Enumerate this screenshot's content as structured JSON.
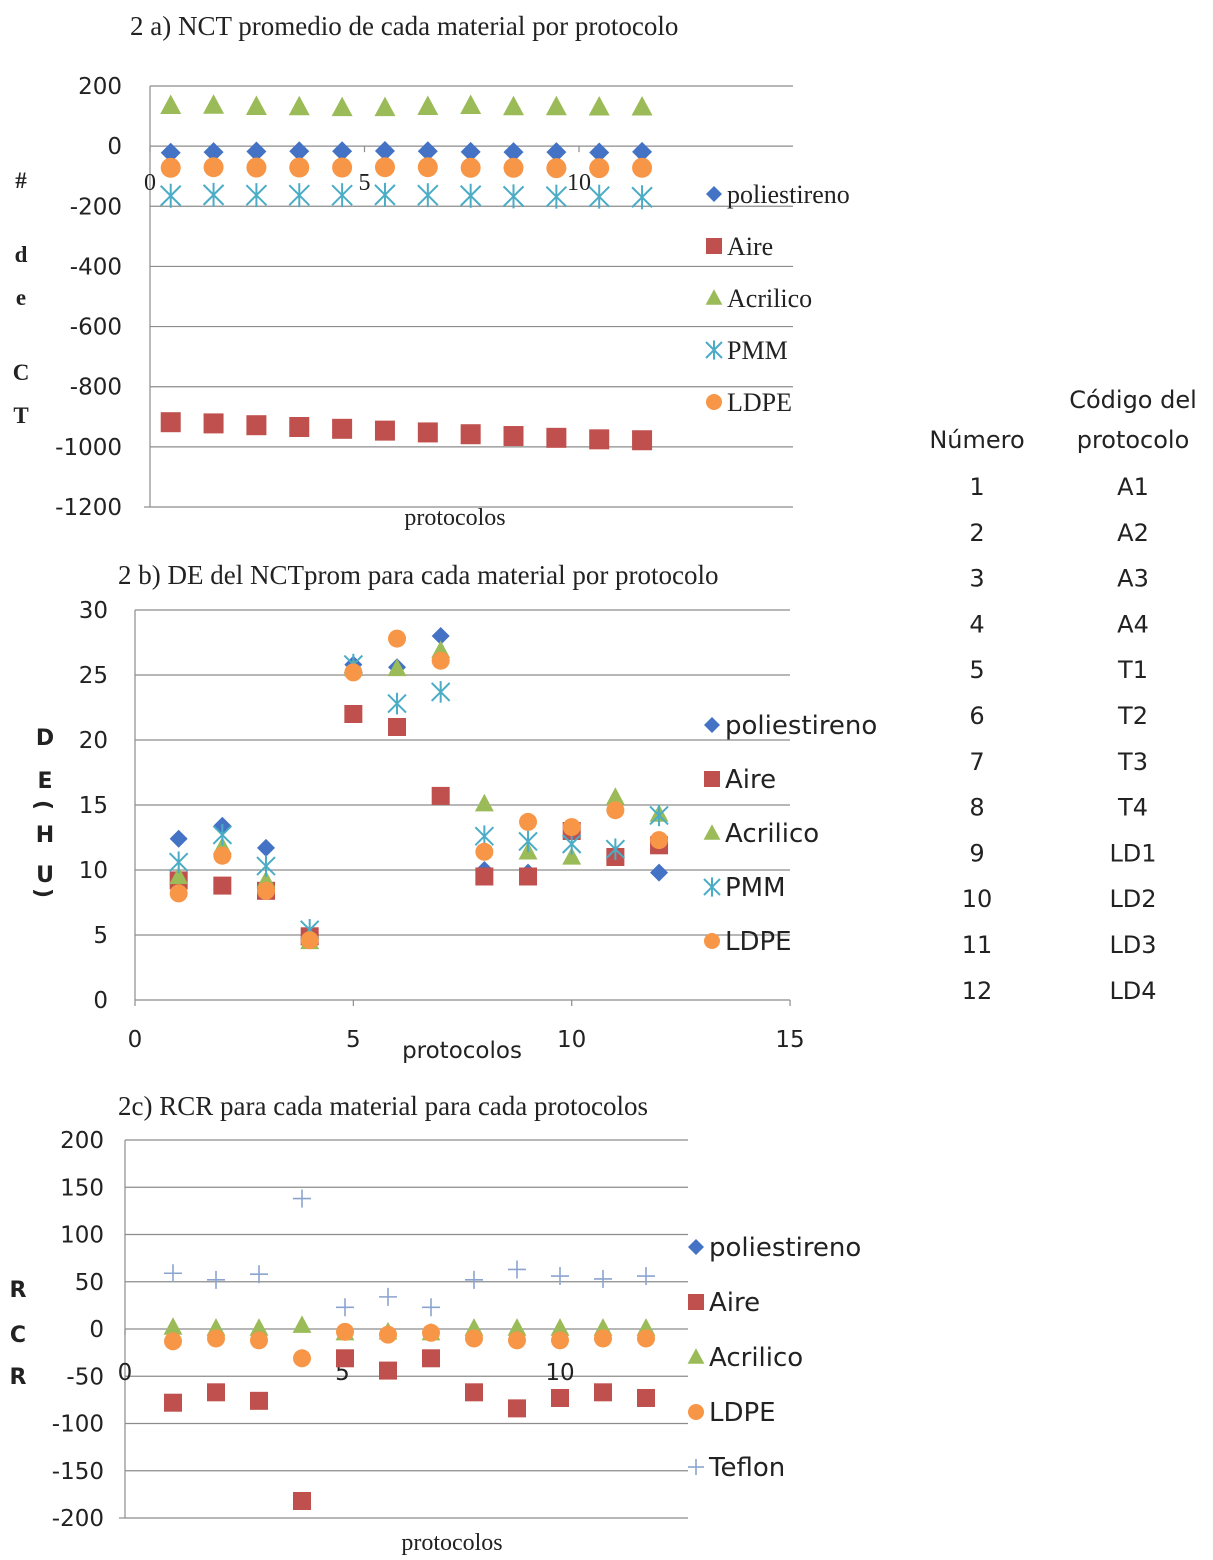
{
  "chart_data": [
    {
      "id": "a",
      "type": "scatter",
      "title": "2 a) NCT promedio de cada material por protocolo",
      "xlabel": "protocolos",
      "ylabel": [
        "#",
        "d",
        "e",
        "C",
        "T"
      ],
      "ylim": [
        -1200,
        200
      ],
      "yticks": [
        "200",
        "0",
        "-200",
        "-400",
        "-600",
        "-800",
        "-1000",
        "-1200"
      ],
      "xlim": [
        0,
        15
      ],
      "xticks": [
        "0",
        "5",
        "10"
      ],
      "grid": true,
      "legend_position": "right",
      "x": [
        1,
        2,
        3,
        4,
        5,
        6,
        7,
        8,
        9,
        10,
        11,
        12
      ],
      "series": [
        {
          "name": "poliestireno",
          "marker": "diamond",
          "color": "#4472c4",
          "values": [
            -22,
            -20,
            -18,
            -17,
            -17,
            -16,
            -17,
            -19,
            -20,
            -20,
            -21,
            -19
          ]
        },
        {
          "name": "Aire",
          "marker": "square",
          "color": "#c0504d",
          "values": [
            -918,
            -922,
            -928,
            -934,
            -940,
            -946,
            -952,
            -958,
            -964,
            -970,
            -975,
            -978
          ]
        },
        {
          "name": "Acrilico",
          "marker": "triangle",
          "color": "#9bbb59",
          "values": [
            135,
            136,
            132,
            131,
            128,
            128,
            132,
            135,
            131,
            131,
            130,
            130
          ]
        },
        {
          "name": "PMM",
          "marker": "star",
          "color": "#4bacc6",
          "values": [
            -165,
            -162,
            -163,
            -163,
            -163,
            -162,
            -163,
            -165,
            -167,
            -168,
            -168,
            -170
          ]
        },
        {
          "name": "LDPE",
          "marker": "circle",
          "color": "#f79646",
          "values": [
            -72,
            -70,
            -71,
            -71,
            -71,
            -70,
            -70,
            -72,
            -72,
            -73,
            -73,
            -72
          ]
        }
      ]
    },
    {
      "id": "b",
      "type": "scatter",
      "title": "2 b) DE del NCTprom  para  cada material por protocolo",
      "xlabel": "protocolos",
      "ylabel": [
        "D",
        "E",
        "H",
        "U"
      ],
      "ylabel_brackets": [
        "(",
        ")"
      ],
      "ylim": [
        0,
        30
      ],
      "yticks": [
        "30",
        "25",
        "20",
        "15",
        "10",
        "5",
        "0"
      ],
      "xlim": [
        0,
        15
      ],
      "xticks": [
        "0",
        "5",
        "10",
        "15"
      ],
      "grid": true,
      "legend_position": "right",
      "x": [
        1,
        2,
        3,
        4,
        5,
        6,
        7,
        8,
        9,
        10,
        11,
        12
      ],
      "series": [
        {
          "name": "poliestireno",
          "marker": "diamond",
          "color": "#4472c4",
          "values": [
            12.4,
            13.4,
            11.7,
            4.7,
            25.8,
            25.6,
            28.0,
            10.0,
            9.8,
            13.2,
            11.2,
            9.8
          ]
        },
        {
          "name": "Aire",
          "marker": "square",
          "color": "#c0504d",
          "values": [
            9.2,
            8.8,
            8.4,
            4.9,
            22.0,
            21.0,
            15.7,
            9.5,
            9.5,
            13.0,
            11.0,
            11.9
          ]
        },
        {
          "name": "Acrilico",
          "marker": "triangle",
          "color": "#9bbb59",
          "values": [
            9.5,
            11.8,
            9.2,
            4.5,
            25.5,
            25.5,
            26.9,
            15.1,
            11.4,
            11.0,
            15.6,
            14.3
          ]
        },
        {
          "name": "PMM",
          "marker": "star",
          "color": "#4bacc6",
          "values": [
            10.6,
            12.7,
            10.3,
            5.4,
            25.8,
            22.8,
            23.7,
            12.6,
            12.2,
            12.0,
            11.6,
            14.2
          ]
        },
        {
          "name": "LDPE",
          "marker": "circle",
          "color": "#f79646",
          "values": [
            8.2,
            11.1,
            8.4,
            4.6,
            25.2,
            27.8,
            26.1,
            11.4,
            13.7,
            13.3,
            14.6,
            12.3
          ]
        }
      ]
    },
    {
      "id": "c",
      "type": "scatter",
      "title": "2c) RCR para cada material para cada protocolos",
      "xlabel": "protocolos",
      "ylabel": [
        "R",
        "C",
        "R"
      ],
      "ylim": [
        -200,
        200
      ],
      "yticks": [
        "200",
        "150",
        "100",
        "50",
        "0",
        "-50",
        "-100",
        "-150",
        "-200"
      ],
      "xlim": [
        0,
        15
      ],
      "xticks": [
        "0",
        "5",
        "10"
      ],
      "grid": true,
      "legend_position": "right",
      "x": [
        1,
        2,
        3,
        4,
        5,
        6,
        7,
        8,
        9,
        10,
        11,
        12
      ],
      "series": [
        {
          "name": "poliestireno",
          "marker": "diamond",
          "color": "#4472c4",
          "values": [
            null,
            null,
            null,
            null,
            null,
            null,
            null,
            null,
            null,
            null,
            null,
            null
          ]
        },
        {
          "name": "Aire",
          "marker": "square",
          "color": "#c0504d",
          "values": [
            -78,
            -67,
            -76,
            -182,
            -31,
            -44,
            -31,
            -67,
            -84,
            -73,
            -67,
            -73
          ]
        },
        {
          "name": "Acrilico",
          "marker": "triangle",
          "color": "#9bbb59",
          "values": [
            2,
            1,
            1,
            4,
            -4,
            -3,
            -4,
            1,
            1,
            1,
            1,
            1
          ]
        },
        {
          "name": "LDPE",
          "marker": "circle",
          "color": "#f79646",
          "values": [
            -13,
            -10,
            -12,
            -31,
            -3,
            -6,
            -4,
            -10,
            -12,
            -12,
            -10,
            -10
          ]
        },
        {
          "name": "Teflon",
          "marker": "plus",
          "color": "#8aa4cf",
          "values": [
            59,
            52,
            58,
            138,
            23,
            34,
            23,
            52,
            63,
            56,
            53,
            56
          ]
        }
      ]
    }
  ],
  "protocol_table": {
    "headers": [
      "Número",
      "Código del",
      "protocolo"
    ],
    "rows": [
      [
        "1",
        "A1"
      ],
      [
        "2",
        "A2"
      ],
      [
        "3",
        "A3"
      ],
      [
        "4",
        "A4"
      ],
      [
        "5",
        "T1"
      ],
      [
        "6",
        "T2"
      ],
      [
        "7",
        "T3"
      ],
      [
        "8",
        "T4"
      ],
      [
        "9",
        "LD1"
      ],
      [
        "10",
        "LD2"
      ],
      [
        "11",
        "LD3"
      ],
      [
        "12",
        "LD4"
      ]
    ]
  }
}
